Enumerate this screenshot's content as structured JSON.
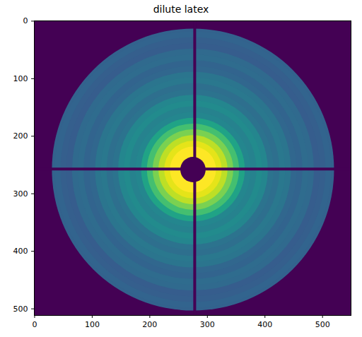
{
  "chart_data": {
    "type": "image",
    "title": "dilute latex",
    "color": "viridis",
    "clim": [
      0,
      10
    ],
    "xlim": [
      -0.5,
      549.5
    ],
    "ylim": [
      511.5,
      -0.5
    ],
    "xticks": [
      0,
      100,
      200,
      300,
      400,
      500
    ],
    "yticks": [
      0,
      100,
      200,
      300,
      400,
      500
    ],
    "center": {
      "x": 275,
      "y": 258
    },
    "rings": {
      "radius": [
        245,
        240,
        230,
        220,
        210,
        200,
        190,
        180,
        170,
        160,
        150,
        140,
        130,
        120,
        110,
        100,
        90,
        80,
        70,
        60,
        50,
        40
      ],
      "values": [
        3.1,
        3.2,
        3.0,
        2.9,
        3.4,
        3.5,
        3.2,
        3.3,
        3.9,
        4.0,
        3.6,
        3.8,
        4.6,
        4.8,
        4.4,
        4.6,
        5.8,
        7.0,
        8.0,
        9.0,
        9.6,
        10
      ]
    },
    "beamstop_radius": 22,
    "mask_x": 278,
    "mask_y": 257
  }
}
